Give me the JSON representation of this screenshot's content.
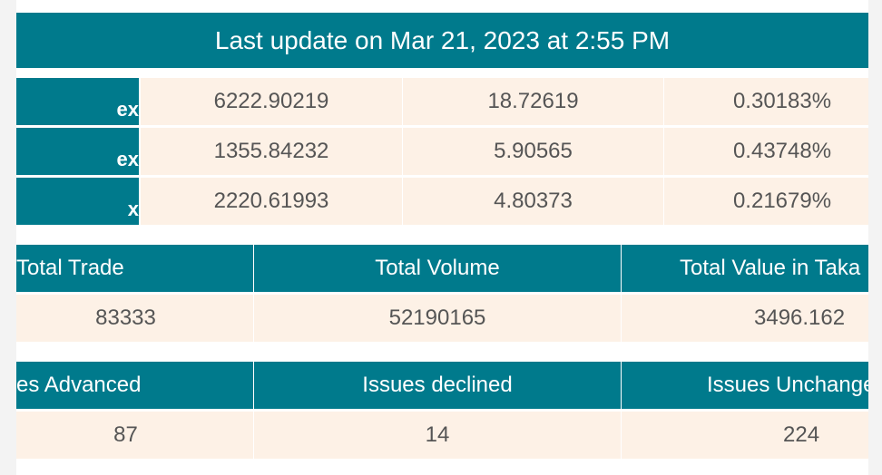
{
  "header": {
    "title": "Last update on Mar 21, 2023 at 2:55 PM"
  },
  "indices": [
    {
      "name_fragment": "ex",
      "value": "6222.90219",
      "change": "18.72619",
      "percent": "0.30183%"
    },
    {
      "name_fragment": "ex",
      "value": "1355.84232",
      "change": "5.90565",
      "percent": "0.43748%"
    },
    {
      "name_fragment": "x",
      "value": "2220.61993",
      "change": "4.80373",
      "percent": "0.21679%"
    }
  ],
  "trade_summary": {
    "headers": [
      "Total Trade",
      "Total Volume",
      "Total Value in Taka"
    ],
    "values": [
      "83333",
      "52190165",
      "3496.162"
    ]
  },
  "issues_summary": {
    "headers": [
      "Issues Advanced",
      "Issues declined",
      "Issues Unchanged"
    ],
    "values": [
      "87",
      "14",
      "224"
    ]
  },
  "colors": {
    "accent": "#007a8c",
    "cell_bg": "#fdf1e6",
    "text": "#555555"
  }
}
